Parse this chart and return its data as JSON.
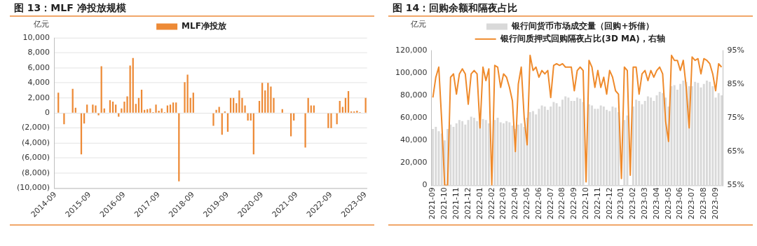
{
  "chart_data": [
    {
      "type": "bar",
      "title": "图 13：MLF 净投放规模",
      "ylabel": "亿元",
      "legend": "top",
      "grid": "y",
      "categories": [
        "2014-09",
        null,
        null,
        null,
        null,
        null,
        null,
        null,
        null,
        null,
        null,
        null,
        "2015-09",
        null,
        null,
        null,
        null,
        null,
        null,
        null,
        null,
        null,
        null,
        null,
        "2016-09",
        null,
        null,
        null,
        null,
        null,
        null,
        null,
        null,
        null,
        null,
        null,
        "2017-09",
        null,
        null,
        null,
        null,
        null,
        null,
        null,
        null,
        null,
        null,
        null,
        "2018-09",
        null,
        null,
        null,
        null,
        null,
        null,
        null,
        null,
        null,
        null,
        null,
        "2019-09",
        null,
        null,
        null,
        null,
        null,
        null,
        null,
        null,
        null,
        null,
        null,
        "2020-09",
        null,
        null,
        null,
        null,
        null,
        null,
        null,
        null,
        null,
        null,
        null,
        "2021-09",
        null,
        null,
        null,
        null,
        null,
        null,
        null,
        null,
        null,
        null,
        null,
        "2022-09",
        null,
        null,
        null,
        null,
        null,
        null,
        null,
        null,
        null,
        null,
        null,
        "2023-09"
      ],
      "series": [
        {
          "name": "MLF净投放",
          "color": "#ed8a36",
          "values": [
            0,
            2700,
            0,
            -1500,
            0,
            0,
            3200,
            700,
            0,
            -5500,
            -1400,
            1100,
            0,
            1100,
            1000,
            -300,
            6200,
            600,
            0,
            1700,
            1500,
            1100,
            -500,
            600,
            1500,
            2200,
            6300,
            7300,
            1200,
            2000,
            3100,
            400,
            500,
            600,
            100,
            1100,
            300,
            600,
            100,
            1000,
            1100,
            1400,
            1400,
            -9100,
            0,
            4100,
            5100,
            2000,
            2700,
            0,
            0,
            0,
            0,
            0,
            0,
            -1700,
            400,
            800,
            -2900,
            200,
            -2500,
            2000,
            2000,
            1300,
            3000,
            2000,
            1000,
            -1000,
            -1000,
            -5500,
            0,
            1600,
            4000,
            3000,
            4000,
            3500,
            2000,
            0,
            0,
            500,
            0,
            0,
            -3100,
            -1000,
            0,
            0,
            0,
            -4600,
            2000,
            1000,
            1000,
            0,
            0,
            0,
            0,
            -2000,
            -2000,
            0,
            -1500,
            1600,
            800,
            2000,
            2900,
            200,
            200,
            300,
            100,
            0,
            2000
          ]
        }
      ],
      "ylim": [
        -10000,
        10000
      ],
      "yticks": [
        {
          "value": -10000,
          "label": "(10,000)"
        },
        {
          "value": -8000,
          "label": "(8,000)"
        },
        {
          "value": -6000,
          "label": "(6,000)"
        },
        {
          "value": -4000,
          "label": "(4,000)"
        },
        {
          "value": -2000,
          "label": "(2,000)"
        },
        0,
        {
          "value": 2000,
          "label": "2,000"
        },
        {
          "value": 4000,
          "label": "4,000"
        },
        {
          "value": 6000,
          "label": "6,000"
        },
        {
          "value": 8000,
          "label": "8,000"
        },
        {
          "value": 10000,
          "label": "10,000"
        }
      ]
    },
    {
      "type": "bar",
      "title": "图 14：回购余额和隔夜占比",
      "ylabel": "亿元",
      "legend": "top",
      "categories": [
        "2021-09",
        null,
        null,
        null,
        "2021-10",
        null,
        null,
        null,
        "2021-11",
        null,
        null,
        null,
        "2021-12",
        null,
        null,
        null,
        "2022-01",
        null,
        null,
        null,
        "2022-02",
        null,
        null,
        null,
        "2022-03",
        null,
        null,
        null,
        "2022-04",
        null,
        null,
        null,
        "2022-05",
        null,
        null,
        null,
        "2022-06",
        null,
        null,
        null,
        "2022-07",
        null,
        null,
        null,
        "2022-08",
        null,
        null,
        null,
        "2022-09",
        null,
        null,
        null,
        "2022-10",
        null,
        null,
        null,
        "2022-11",
        null,
        null,
        null,
        "2022-12",
        null,
        null,
        null,
        "2023-01",
        null,
        null,
        null,
        "2023-02",
        null,
        null,
        null,
        "2023-03",
        null,
        null,
        null,
        "2023-04",
        null,
        null,
        null,
        "2023-05",
        null,
        null,
        null,
        "2023-06",
        null,
        null,
        null,
        "2023-07",
        null,
        null,
        null,
        "2023-08",
        null,
        null,
        null,
        "2023-09",
        null,
        null
      ],
      "series": [
        {
          "name": "银行间货币市场成交量（回购+拆借）",
          "type": "bar",
          "color": "#d9d9d9",
          "values": [
            50000,
            52000,
            48000,
            46000,
            40000,
            50000,
            54000,
            52000,
            55000,
            58000,
            57000,
            54000,
            58000,
            61000,
            60000,
            57000,
            56000,
            59000,
            58000,
            55000,
            null,
            58000,
            60000,
            56000,
            55000,
            57000,
            56000,
            53000,
            50000,
            54000,
            55000,
            52000,
            60000,
            65000,
            66000,
            63000,
            68000,
            71000,
            70000,
            67000,
            70000,
            74000,
            73000,
            70000,
            76000,
            79000,
            78000,
            75000,
            75000,
            78000,
            77000,
            74000,
            null,
            72000,
            71000,
            68000,
            68000,
            71000,
            70000,
            67000,
            66000,
            70000,
            69000,
            65000,
            null,
            58000,
            62000,
            null,
            70000,
            76000,
            75000,
            72000,
            75000,
            79000,
            78000,
            75000,
            80000,
            83000,
            82000,
            78000,
            70000,
            88000,
            89000,
            85000,
            90000,
            93000,
            92000,
            88000,
            88000,
            92000,
            91000,
            87000,
            90000,
            93000,
            92000,
            88000,
            78000,
            82000,
            80000
          ]
        },
        {
          "name": "银行间质押式回购隔夜占比(3D MA)，右轴",
          "type": "line",
          "axis": "y2",
          "color": "#ef8a2b",
          "values": [
            81,
            87,
            90,
            74,
            55,
            55,
            87,
            88,
            82,
            88,
            89.5,
            88,
            79,
            88,
            89,
            88,
            72,
            90,
            86,
            89.5,
            55,
            90.5,
            90,
            84,
            88,
            87,
            84,
            80,
            65,
            85,
            90,
            75,
            67,
            93.5,
            89,
            90,
            87,
            89,
            88,
            89,
            81,
            90.5,
            91,
            90.5,
            91,
            90,
            90,
            90,
            83,
            89,
            90,
            89,
            56,
            92,
            90,
            84,
            89,
            84,
            87,
            82,
            89,
            87,
            83,
            82,
            57,
            90,
            89,
            58,
            90,
            90,
            82,
            88,
            89,
            86,
            89,
            87,
            89,
            90,
            88,
            74,
            68,
            93.5,
            92,
            92,
            89,
            92,
            84,
            72,
            93,
            92,
            92.5,
            88,
            92.5,
            92,
            91,
            88,
            83,
            91,
            90
          ]
        }
      ],
      "marker": "none",
      "ylim": [
        0,
        120000
      ],
      "yticks": [
        0,
        {
          "value": 20000,
          "label": "20,000"
        },
        {
          "value": 40000,
          "label": "40,000"
        },
        {
          "value": 60000,
          "label": "60,000"
        },
        {
          "value": 80000,
          "label": "80,000"
        },
        {
          "value": 100000,
          "label": "100,000"
        },
        {
          "value": 120000,
          "label": "120,000"
        }
      ],
      "y2lim": [
        55,
        95
      ],
      "y2ticks": [
        {
          "value": 55,
          "label": "55%"
        },
        {
          "value": 65,
          "label": "65%"
        },
        {
          "value": 75,
          "label": "75%"
        },
        {
          "value": 85,
          "label": "85%"
        },
        {
          "value": 95,
          "label": "95%"
        }
      ]
    }
  ]
}
